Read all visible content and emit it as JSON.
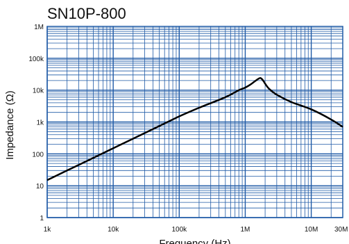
{
  "chart_data": {
    "type": "line",
    "title": "SN10P-800",
    "xlabel": "Frequency (Hz)",
    "ylabel": "Impedance (Ω)",
    "x_scale": "log",
    "y_scale": "log",
    "xlim": [
      1000,
      30000000
    ],
    "ylim": [
      1,
      1000000
    ],
    "x_ticks": [
      {
        "value": 1000,
        "label": "1k"
      },
      {
        "value": 10000,
        "label": "10k"
      },
      {
        "value": 100000,
        "label": "100k"
      },
      {
        "value": 1000000,
        "label": "1M"
      },
      {
        "value": 10000000,
        "label": "10M"
      },
      {
        "value": 30000000,
        "label": "30M"
      }
    ],
    "y_ticks": [
      {
        "value": 1,
        "label": "1"
      },
      {
        "value": 10,
        "label": "10"
      },
      {
        "value": 100,
        "label": "100"
      },
      {
        "value": 1000,
        "label": "1k"
      },
      {
        "value": 10000,
        "label": "10k"
      },
      {
        "value": 100000,
        "label": "100k"
      },
      {
        "value": 1000000,
        "label": "1M"
      }
    ],
    "grid": true,
    "colors": {
      "grid": "#1f5aa6",
      "line": "#000000",
      "background": "#ffffff"
    },
    "series": [
      {
        "x": [
          1000,
          2000,
          5000,
          10000,
          20000,
          50000,
          100000,
          200000,
          500000,
          800000,
          1000000,
          1200000,
          1400000,
          1600000,
          1700000,
          1800000,
          1900000,
          2000000,
          2300000,
          3000000,
          5000000,
          10000000,
          20000000,
          30000000
        ],
        "y": [
          15,
          30,
          75,
          150,
          300,
          750,
          1500,
          2800,
          6000,
          10000,
          12000,
          15000,
          19000,
          23000,
          24000,
          22000,
          19000,
          16000,
          11000,
          7200,
          4200,
          2500,
          1200,
          700
        ]
      }
    ]
  }
}
